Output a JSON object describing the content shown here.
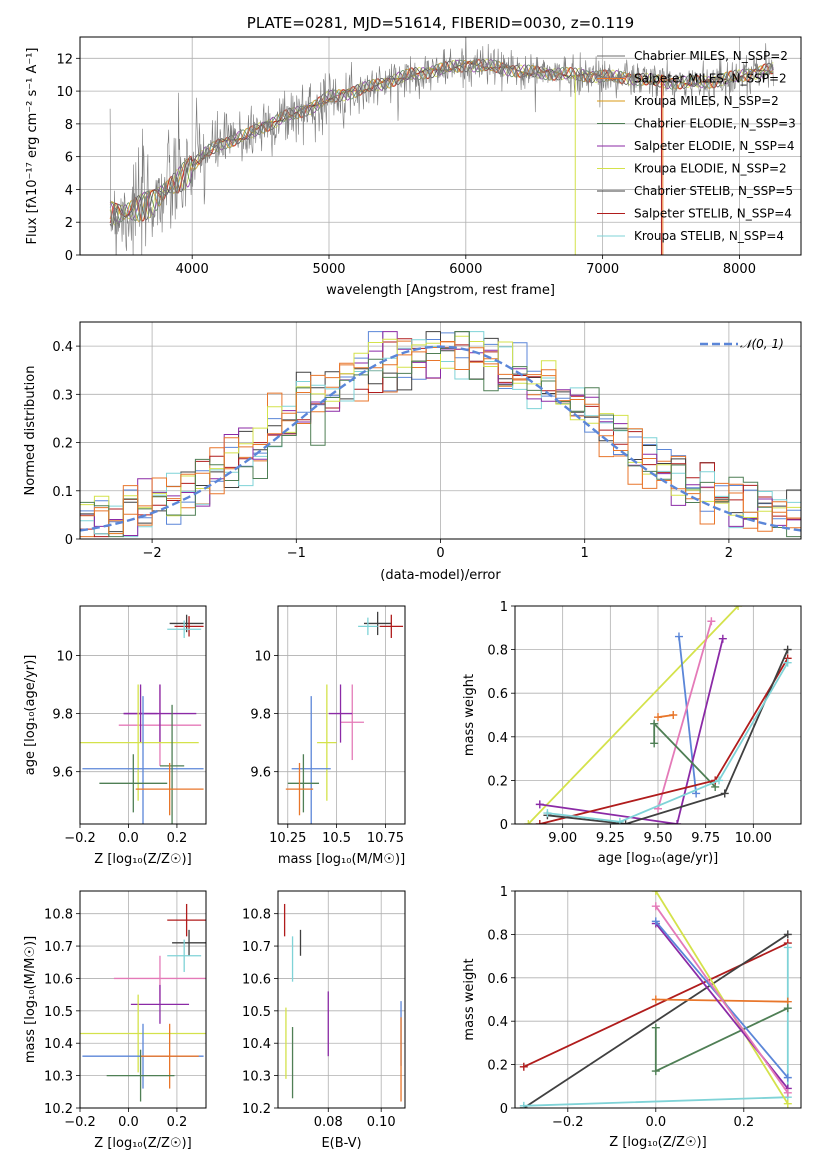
{
  "colors": {
    "chabrier_miles": "#6f6f6f",
    "salpeter_miles": "#e8762b",
    "kroupa_miles": "#d99a14",
    "chabrier_elodie": "#4f7f55",
    "salpeter_elodie": "#8b2aa6",
    "kroupa_elodie": "#d4e24b",
    "chabrier_stelib": "#404040",
    "salpeter_stelib": "#b01c1c",
    "kroupa_stelib": "#7fd3d7",
    "blue": "#5b86d8",
    "pink": "#e47ab8",
    "orange": "#e8762b"
  },
  "chart_data": [
    {
      "id": "spectrum",
      "type": "line",
      "title": "PLATE=0281, MJD=51614, FIBERID=0030, z=0.119",
      "xlabel": "wavelength [Angstrom, rest frame]",
      "ylabel": "Flux [fλ10⁻¹⁷ erg cm⁻² s⁻¹ A⁻¹]",
      "xlim": [
        3180,
        8450
      ],
      "ylim": [
        0,
        13.3
      ],
      "xticks": [
        4000,
        5000,
        6000,
        7000,
        8000
      ],
      "yticks": [
        0,
        2,
        4,
        6,
        8,
        10,
        12
      ],
      "legend_loc": "right",
      "series": [
        {
          "name": "Chabrier MILES, N_SSP=2",
          "color": "chabrier_miles"
        },
        {
          "name": "Salpeter MILES, N_SSP=2",
          "color": "salpeter_miles"
        },
        {
          "name": "Kroupa MILES, N_SSP=2",
          "color": "kroupa_miles"
        },
        {
          "name": "Chabrier ELODIE, N_SSP=3",
          "color": "chabrier_elodie"
        },
        {
          "name": "Salpeter ELODIE, N_SSP=4",
          "color": "salpeter_elodie"
        },
        {
          "name": "Kroupa ELODIE, N_SSP=2",
          "color": "kroupa_elodie"
        },
        {
          "name": "Chabrier STELIB, N_SSP=5",
          "color": "chabrier_stelib"
        },
        {
          "name": "Salpeter STELIB, N_SSP=4",
          "color": "salpeter_stelib"
        },
        {
          "name": "Kroupa STELIB, N_SSP=4",
          "color": "kroupa_stelib"
        }
      ],
      "continuum": {
        "x": [
          3400,
          3500,
          3600,
          3700,
          3800,
          3900,
          4000,
          4100,
          4200,
          4300,
          4400,
          4500,
          4600,
          4700,
          4800,
          4900,
          5000,
          5200,
          5400,
          5600,
          5800,
          6000,
          6200,
          6400,
          6600,
          6800,
          7000,
          7200,
          7400,
          7600,
          7800,
          8000,
          8200
        ],
        "y": [
          2.7,
          2.5,
          2.9,
          3.3,
          3.9,
          4.6,
          5.4,
          6.2,
          6.8,
          7.0,
          7.3,
          7.8,
          8.1,
          8.5,
          8.8,
          9.1,
          9.6,
          10.0,
          10.5,
          11.0,
          11.3,
          11.6,
          11.5,
          11.2,
          11.1,
          11.0,
          10.9,
          10.8,
          10.6,
          10.5,
          10.6,
          10.9,
          11.3
        ]
      }
    },
    {
      "id": "residuals",
      "type": "bar",
      "xlabel": "(data-model)/error",
      "ylabel": "Normed distribution",
      "xlim": [
        -2.5,
        2.5
      ],
      "ylim": [
        0,
        0.45
      ],
      "xticks": [
        -2,
        -1,
        0,
        1,
        2
      ],
      "xtick_labels": [
        "−2",
        "−1",
        "0",
        "1",
        "2"
      ],
      "yticks": [
        0.0,
        0.1,
        0.2,
        0.3,
        0.4
      ],
      "legend": "𝒩(0, 1)",
      "legend_loc": "upper right",
      "bin_width": 0.1
    },
    {
      "id": "z_age",
      "type": "scatter",
      "xlabel": "Z [log₁₀(Z/Z☉)]",
      "ylabel": "age  [log₁₀(age/yr)]",
      "xlim": [
        -0.2,
        0.32
      ],
      "ylim": [
        9.42,
        10.17
      ],
      "xticks": [
        -0.2,
        0.0,
        0.2
      ],
      "xtick_labels": [
        "−0.2",
        "0.0",
        "0.2"
      ],
      "yticks": [
        9.6,
        9.8,
        10.0
      ],
      "points": [
        {
          "x": 0.24,
          "y": 10.11,
          "xerr": 0.07,
          "yerr": 0.03,
          "color": "chabrier_stelib"
        },
        {
          "x": 0.25,
          "y": 10.1,
          "xerr": 0.06,
          "yerr": 0.035,
          "color": "salpeter_stelib"
        },
        {
          "x": 0.23,
          "y": 10.09,
          "xerr": 0.07,
          "yerr": 0.03,
          "color": "kroupa_stelib"
        },
        {
          "x": 0.13,
          "y": 9.76,
          "xerr": 0.17,
          "yerr": 0.14,
          "color": "pink"
        },
        {
          "x": 0.13,
          "y": 9.8,
          "xerr": 0.15,
          "yerr": 0.1,
          "color": "salpeter_elodie"
        },
        {
          "x": 0.05,
          "y": 9.8,
          "xerr": 0.07,
          "yerr": 0.1,
          "color": "salpeter_elodie"
        },
        {
          "x": 0.04,
          "y": 9.7,
          "xerr": 0.25,
          "yerr": 0.2,
          "color": "kroupa_elodie"
        },
        {
          "x": 0.06,
          "y": 9.61,
          "xerr": 0.25,
          "yerr": 0.25,
          "color": "blue"
        },
        {
          "x": 0.18,
          "y": 9.62,
          "xerr": 0.05,
          "yerr": 0.21,
          "color": "chabrier_elodie"
        },
        {
          "x": 0.02,
          "y": 9.56,
          "xerr": 0.14,
          "yerr": 0.1,
          "color": "chabrier_elodie"
        },
        {
          "x": 0.17,
          "y": 9.54,
          "xerr": 0.14,
          "yerr": 0.09,
          "color": "orange"
        }
      ]
    },
    {
      "id": "mass_age",
      "type": "scatter",
      "xlabel": "mass [log₁₀(M/M☉)]",
      "ylabel": "",
      "xlim": [
        10.2,
        10.85
      ],
      "ylim": [
        9.42,
        10.17
      ],
      "xticks": [
        10.25,
        10.5,
        10.75
      ],
      "yticks": [
        9.6,
        9.8,
        10.0
      ],
      "points": [
        {
          "x": 10.71,
          "y": 10.11,
          "xerr": 0.07,
          "yerr": 0.04,
          "color": "chabrier_stelib"
        },
        {
          "x": 10.78,
          "y": 10.1,
          "xerr": 0.06,
          "yerr": 0.04,
          "color": "salpeter_stelib"
        },
        {
          "x": 10.66,
          "y": 10.1,
          "xerr": 0.05,
          "yerr": 0.03,
          "color": "kroupa_stelib"
        },
        {
          "x": 10.58,
          "y": 9.77,
          "xerr": 0.06,
          "yerr": 0.13,
          "color": "pink"
        },
        {
          "x": 10.52,
          "y": 9.8,
          "xerr": 0.06,
          "yerr": 0.1,
          "color": "salpeter_elodie"
        },
        {
          "x": 10.45,
          "y": 9.7,
          "xerr": 0.05,
          "yerr": 0.2,
          "color": "kroupa_elodie"
        },
        {
          "x": 10.37,
          "y": 9.61,
          "xerr": 0.1,
          "yerr": 0.25,
          "color": "blue"
        },
        {
          "x": 10.33,
          "y": 9.56,
          "xerr": 0.08,
          "yerr": 0.1,
          "color": "chabrier_elodie"
        },
        {
          "x": 10.31,
          "y": 9.54,
          "xerr": 0.07,
          "yerr": 0.09,
          "color": "orange"
        }
      ]
    },
    {
      "id": "age_weight",
      "type": "line",
      "xlabel": "age  [log₁₀(age/yr)]",
      "ylabel": "mass weight",
      "xlim": [
        8.75,
        10.25
      ],
      "ylim": [
        0,
        1
      ],
      "xticks": [
        9.0,
        9.25,
        9.5,
        9.75,
        10.0
      ],
      "xtick_labels": [
        "9.00",
        "9.25",
        "9.50",
        "9.75",
        "10.00"
      ],
      "yticks": [
        0.0,
        0.2,
        0.4,
        0.6,
        0.8,
        1.0
      ],
      "series": [
        {
          "color": "kroupa_elodie",
          "x": [
            8.82,
            9.92
          ],
          "y": [
            0.0,
            1.0
          ]
        },
        {
          "color": "blue",
          "x": [
            9.61,
            9.7
          ],
          "y": [
            0.86,
            0.14
          ]
        },
        {
          "color": "pink",
          "x": [
            9.5,
            9.78
          ],
          "y": [
            0.07,
            0.93
          ]
        },
        {
          "color": "salpeter_elodie",
          "x": [
            8.88,
            9.6,
            9.84
          ],
          "y": [
            0.09,
            0.0,
            0.85
          ]
        },
        {
          "color": "orange",
          "x": [
            9.5,
            9.58
          ],
          "y": [
            0.49,
            0.5
          ]
        },
        {
          "color": "chabrier_elodie",
          "x": [
            9.48,
            9.48,
            9.8
          ],
          "y": [
            0.37,
            0.46,
            0.17
          ]
        },
        {
          "color": "salpeter_stelib",
          "x": [
            8.88,
            9.8,
            10.18
          ],
          "y": [
            0.0,
            0.2,
            0.76
          ]
        },
        {
          "color": "chabrier_stelib",
          "x": [
            8.92,
            9.33,
            9.85,
            10.18
          ],
          "y": [
            0.04,
            0.0,
            0.14,
            0.8
          ]
        },
        {
          "color": "kroupa_stelib",
          "x": [
            8.92,
            9.3,
            9.82,
            10.18
          ],
          "y": [
            0.05,
            0.01,
            0.2,
            0.74
          ]
        }
      ]
    },
    {
      "id": "z_mass",
      "type": "scatter",
      "xlabel": "Z [log₁₀(Z/Z☉)]",
      "ylabel": "mass [log₁₀(M/M☉)]",
      "xlim": [
        -0.2,
        0.32
      ],
      "ylim": [
        10.2,
        10.87
      ],
      "xticks": [
        -0.2,
        0.0,
        0.2
      ],
      "xtick_labels": [
        "−0.2",
        "0.0",
        "0.2"
      ],
      "yticks": [
        10.2,
        10.3,
        10.4,
        10.5,
        10.6,
        10.7,
        10.8
      ],
      "points": [
        {
          "x": 0.24,
          "y": 10.78,
          "xerr": 0.08,
          "yerr": 0.05,
          "color": "salpeter_stelib"
        },
        {
          "x": 0.25,
          "y": 10.71,
          "xerr": 0.07,
          "yerr": 0.04,
          "color": "chabrier_stelib"
        },
        {
          "x": 0.23,
          "y": 10.67,
          "xerr": 0.07,
          "yerr": 0.05,
          "color": "kroupa_stelib"
        },
        {
          "x": 0.13,
          "y": 10.6,
          "xerr": 0.19,
          "yerr": 0.07,
          "color": "pink"
        },
        {
          "x": 0.13,
          "y": 10.52,
          "xerr": 0.12,
          "yerr": 0.06,
          "color": "salpeter_elodie"
        },
        {
          "x": 0.04,
          "y": 10.43,
          "xerr": 0.3,
          "yerr": 0.12,
          "color": "kroupa_elodie"
        },
        {
          "x": 0.06,
          "y": 10.36,
          "xerr": 0.25,
          "yerr": 0.1,
          "color": "blue"
        },
        {
          "x": 0.17,
          "y": 10.36,
          "xerr": 0.12,
          "yerr": 0.1,
          "color": "orange"
        },
        {
          "x": 0.05,
          "y": 10.3,
          "xerr": 0.14,
          "yerr": 0.08,
          "color": "chabrier_elodie"
        }
      ]
    },
    {
      "id": "ebv_mass",
      "type": "scatter",
      "xlabel": "E(B-V)",
      "ylabel": "",
      "xlim": [
        0.061,
        0.109
      ],
      "ylim": [
        10.2,
        10.87
      ],
      "xticks": [
        0.08,
        0.1
      ],
      "xtick_labels": [
        "0.08",
        "0.10"
      ],
      "yticks": [
        10.2,
        10.3,
        10.4,
        10.5,
        10.6,
        10.7,
        10.8
      ],
      "points": [
        {
          "x": 0.0635,
          "y": 10.78,
          "yerr": 0.05,
          "color": "salpeter_stelib"
        },
        {
          "x": 0.0695,
          "y": 10.71,
          "yerr": 0.04,
          "color": "chabrier_stelib"
        },
        {
          "x": 0.0665,
          "y": 10.66,
          "yerr": 0.07,
          "color": "kroupa_stelib"
        },
        {
          "x": 0.064,
          "y": 10.4,
          "yerr": 0.11,
          "color": "kroupa_elodie"
        },
        {
          "x": 0.0665,
          "y": 10.34,
          "yerr": 0.11,
          "color": "chabrier_elodie"
        },
        {
          "x": 0.08,
          "y": 10.46,
          "yerr": 0.1,
          "color": "salpeter_elodie"
        },
        {
          "x": 0.1075,
          "y": 10.43,
          "yerr": 0.1,
          "color": "blue"
        },
        {
          "x": 0.1075,
          "y": 10.35,
          "yerr": 0.13,
          "color": "orange"
        }
      ]
    },
    {
      "id": "z_weight",
      "type": "line",
      "xlabel": "Z [log₁₀(Z/Z☉)]",
      "ylabel": "mass weight",
      "xlim": [
        -0.32,
        0.33
      ],
      "ylim": [
        0,
        1
      ],
      "xticks": [
        -0.2,
        0.0,
        0.2
      ],
      "xtick_labels": [
        "−0.2",
        "0.0",
        "0.2"
      ],
      "yticks": [
        0.0,
        0.2,
        0.4,
        0.6,
        0.8,
        1.0
      ],
      "series": [
        {
          "color": "salpeter_stelib",
          "x": [
            -0.3,
            0.3
          ],
          "y": [
            0.19,
            0.76
          ]
        },
        {
          "color": "chabrier_stelib",
          "x": [
            -0.3,
            0.3
          ],
          "y": [
            0.0,
            0.8
          ]
        },
        {
          "color": "kroupa_stelib",
          "x": [
            -0.3,
            0.3,
            0.3
          ],
          "y": [
            0.01,
            0.05,
            0.74
          ]
        },
        {
          "color": "kroupa_elodie",
          "x": [
            0.0,
            0.3
          ],
          "y": [
            1.0,
            0.02
          ]
        },
        {
          "color": "orange",
          "x": [
            0.0,
            0.3
          ],
          "y": [
            0.5,
            0.49
          ]
        },
        {
          "color": "chabrier_elodie",
          "x": [
            0.0,
            0.0,
            0.3
          ],
          "y": [
            0.37,
            0.17,
            0.46
          ]
        },
        {
          "color": "salpeter_elodie",
          "x": [
            0.0,
            0.3
          ],
          "y": [
            0.85,
            0.09
          ]
        },
        {
          "color": "blue",
          "x": [
            0.0,
            0.3
          ],
          "y": [
            0.86,
            0.14
          ]
        },
        {
          "color": "pink",
          "x": [
            0.0,
            0.3
          ],
          "y": [
            0.93,
            0.07
          ]
        }
      ]
    }
  ]
}
